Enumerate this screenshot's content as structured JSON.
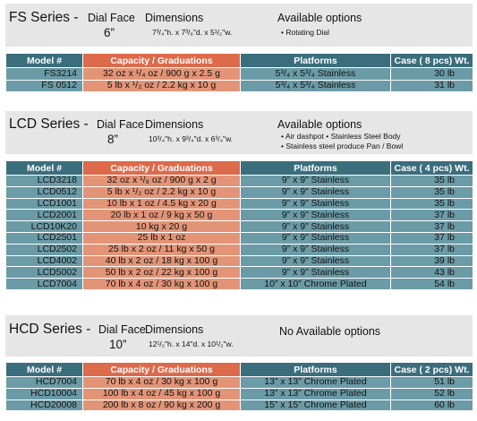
{
  "series": [
    {
      "name": "FS Series -",
      "dial_label": "Dial Face",
      "dial_size": "6”",
      "dimensions_label": "Dimensions",
      "dimensions": "7³/₄\"h. x 7³/₈\"d. x 5¹/₂\"w.",
      "options_label": "Available options",
      "options": [
        "• Rotating Dial"
      ],
      "columns": [
        "Model #",
        "Capacity / Graduations",
        "Platforms",
        "Case ( 8 pcs) Wt."
      ],
      "rows": [
        [
          "FS3214",
          "32 oz x ¹/₄ oz / 900 g x 2.5 g",
          "5³/₄ x 5³/₄ Stainless",
          "30 lb"
        ],
        [
          "FS 0512",
          "5 lb x ¹/₂ oz / 2.2 kg x 10 g",
          "5³/₄ x 5³/₄ Stainless",
          "31 lb"
        ]
      ]
    },
    {
      "name": "LCD Series -",
      "dial_label": "Dial Face",
      "dial_size": "8”",
      "dimensions_label": "Dimensions",
      "dimensions": "10³/₄\"h. x 9³/₄\"d. x 6³/₄\"w.",
      "options_label": "Available options",
      "options": [
        "• Air dashpot   • Stainless Steel Body",
        "• Stainless steel produce Pan / Bowl"
      ],
      "columns": [
        "Model #",
        "Capacity / Graduations",
        "Platforms",
        "Case ( 4 pcs) Wt."
      ],
      "rows": [
        [
          "LCD3218",
          "32 oz x ¹/₈ oz / 900 g x 2 g",
          "9” x 9” Stainless",
          "35 lb"
        ],
        [
          "LCD0512",
          "5 lb x ¹/₂ oz / 2.2 kg x 10 g",
          "9” x 9” Stainless",
          "35 lb"
        ],
        [
          "LCD1001",
          "10 lb x 1 oz / 4.5 kg x 20 g",
          "9” x 9” Stainless",
          "35 lb"
        ],
        [
          "LCD2001",
          "20 lb x 1 oz / 9 kg x 50 g",
          "9” x 9” Stainless",
          "37 lb"
        ],
        [
          "LCD10K20",
          "10 kg x 20 g",
          "9” x 9” Stainless",
          "37 lb"
        ],
        [
          "LCD2501",
          "25 lb x 1 oz",
          "9” x 9” Stainless",
          "37 lb"
        ],
        [
          "LCD2502",
          "25 lb x 2 oz / 11 kg x 50 g",
          "9” x 9” Stainless",
          "37 lb"
        ],
        [
          "LCD4002",
          "40 lb x 2 oz / 18 kg x 100 g",
          "9” x 9” Stainless",
          "39 lb"
        ],
        [
          "LCD5002",
          "50 lb x 2 oz / 22 kg x 100 g",
          "9” x 9” Stainless",
          "43 lb"
        ],
        [
          "LCD7004",
          "70 lb x 4 oz / 30 kg x 100 g",
          "10” x 10” Chrome Plated",
          "54 lb"
        ]
      ]
    },
    {
      "name": "HCD Series -",
      "dial_label": "Dial Face",
      "dial_size": "10”",
      "dimensions_label": "Dimensions",
      "dimensions": "12¹/₂\"h. x 14\"d. x 10¹/₂\"w.",
      "options_label": "No Available options",
      "options": [],
      "columns": [
        "Model #",
        "Capacity / Graduations",
        "Platforms",
        "Case ( 2 pcs) Wt."
      ],
      "rows": [
        [
          "HCD7004",
          "70 lb x 4 oz / 30 kg x 100 g",
          "13” x 13” Chrome Plated",
          "51 lb"
        ],
        [
          "HCD10004",
          "100 lb x 4 oz / 45 kg x 100 g",
          "13” x 13” Chrome Plated",
          "52 lb"
        ],
        [
          "HCD20008",
          "200 lb x 8 oz / 90 kg x 200 g",
          "15” x 15” Chrome Plated",
          "60 lb"
        ]
      ]
    }
  ]
}
